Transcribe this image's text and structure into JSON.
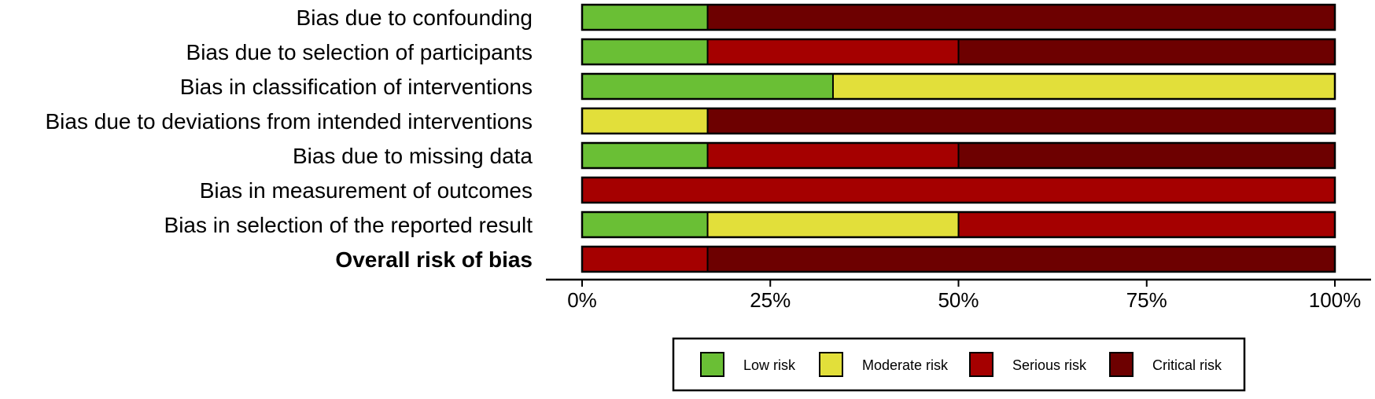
{
  "chart_data": {
    "type": "bar",
    "orientation": "horizontal",
    "stacked": true,
    "categories": [
      "Bias due to confounding",
      "Bias due to selection of participants",
      "Bias in classification of interventions",
      "Bias due to deviations from intended interventions",
      "Bias due to missing data",
      "Bias in measurement of outcomes",
      "Bias in selection of the reported result",
      "Overall risk of bias"
    ],
    "bold_categories": [
      "Overall risk of bias"
    ],
    "series": [
      {
        "name": "Low risk",
        "color": "#6abf35",
        "values": [
          16.67,
          16.67,
          33.33,
          0,
          16.67,
          0,
          16.67,
          0
        ]
      },
      {
        "name": "Moderate risk",
        "color": "#e2df3a",
        "values": [
          0,
          0,
          66.67,
          16.67,
          0,
          0,
          33.33,
          0
        ]
      },
      {
        "name": "Serious risk",
        "color": "#a50000",
        "values": [
          0,
          33.33,
          0,
          0,
          33.33,
          100,
          50,
          16.67
        ]
      },
      {
        "name": "Critical risk",
        "color": "#6d0000",
        "values": [
          83.33,
          50,
          0,
          83.33,
          50,
          0,
          0,
          83.33
        ]
      }
    ],
    "x_ticks": [
      "0%",
      "25%",
      "50%",
      "75%",
      "100%"
    ],
    "xlim": [
      0,
      100
    ],
    "grid": false,
    "legend_position": "bottom"
  }
}
